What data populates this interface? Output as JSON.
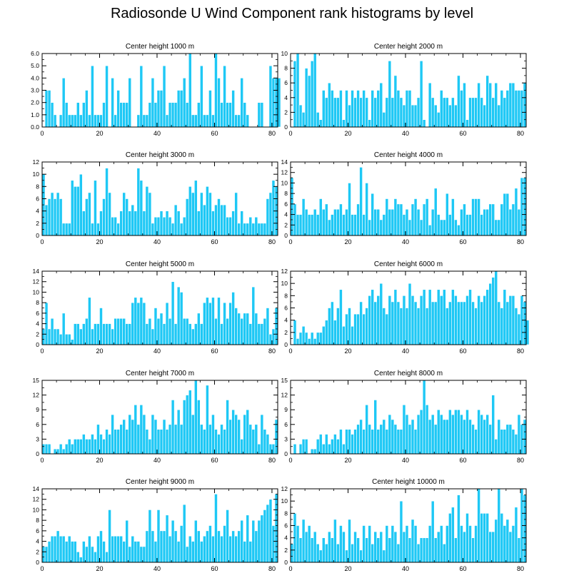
{
  "figure": {
    "title": "Radiosonde U Wind Component rank histograms by level",
    "bar_color": "#1ec8f5",
    "bar_edge_color": "#ffffff"
  },
  "chart_data": [
    {
      "type": "bar",
      "title": "Center height 1000 m",
      "xlim": [
        0,
        82
      ],
      "ylim": [
        0,
        6
      ],
      "xticks": [
        0,
        20,
        40,
        60,
        80
      ],
      "xtick_labels": [
        "0",
        "20",
        "40",
        "60",
        "80"
      ],
      "yticks": [
        0,
        1,
        2,
        3,
        4,
        5,
        6
      ],
      "ytick_labels": [
        "0.0",
        "1.0",
        "2.0",
        "3.0",
        "4.0",
        "5.0",
        "6.0"
      ],
      "values": [
        0,
        3,
        3,
        2,
        1,
        0,
        1,
        4,
        2,
        1,
        1,
        1,
        2,
        1,
        2,
        3,
        1,
        5,
        1,
        1,
        1,
        2,
        5,
        0,
        4,
        1,
        3,
        2,
        2,
        2,
        4,
        0,
        0,
        1,
        5,
        1,
        1,
        2,
        4,
        2,
        3,
        3,
        5,
        1,
        2,
        2,
        2,
        3,
        3,
        4,
        2,
        6,
        1,
        1,
        2,
        5,
        1,
        1,
        3,
        1,
        6,
        4,
        2,
        5,
        2,
        2,
        3,
        1,
        1,
        4,
        2,
        1,
        0,
        0,
        0,
        2,
        2,
        0,
        0,
        5,
        4,
        4,
        4
      ]
    },
    {
      "type": "bar",
      "title": "Center height 2000 m",
      "xlim": [
        0,
        82
      ],
      "ylim": [
        0,
        10
      ],
      "xticks": [
        0,
        20,
        40,
        60,
        80
      ],
      "xtick_labels": [
        "0",
        "20",
        "40",
        "60",
        "80"
      ],
      "yticks": [
        0,
        2,
        4,
        6,
        8,
        10
      ],
      "ytick_labels": [
        "0",
        "2",
        "4",
        "6",
        "8",
        "10"
      ],
      "values": [
        0,
        9,
        10,
        3,
        2,
        8,
        7,
        9,
        10,
        2,
        1,
        5,
        4,
        6,
        5,
        4,
        4,
        5,
        1,
        5,
        3,
        5,
        4,
        5,
        4,
        5,
        4,
        1,
        5,
        4,
        5,
        6,
        2,
        4,
        9,
        4,
        7,
        5,
        4,
        3,
        5,
        5,
        3,
        3,
        4,
        9,
        1,
        0,
        6,
        4,
        3,
        2,
        5,
        4,
        4,
        3,
        4,
        3,
        7,
        5,
        6,
        1,
        4,
        4,
        4,
        6,
        4,
        3,
        7,
        6,
        4,
        6,
        3,
        5,
        4,
        5,
        6,
        6,
        5,
        5,
        5,
        6
      ]
    },
    {
      "type": "bar",
      "title": "Center height 3000 m",
      "xlim": [
        0,
        82
      ],
      "ylim": [
        0,
        12
      ],
      "xticks": [
        0,
        20,
        40,
        60,
        80
      ],
      "xtick_labels": [
        "0",
        "20",
        "40",
        "60",
        "80"
      ],
      "yticks": [
        0,
        2,
        4,
        6,
        8,
        10,
        12
      ],
      "ytick_labels": [
        "0",
        "2",
        "4",
        "6",
        "8",
        "10",
        "12"
      ],
      "values": [
        10,
        5,
        6,
        7,
        6,
        7,
        6,
        2,
        2,
        2,
        9,
        8,
        8,
        10,
        4,
        6,
        7,
        2,
        9,
        2,
        4,
        6,
        11,
        7,
        3,
        3,
        2,
        4,
        7,
        6,
        4,
        5,
        4,
        11,
        9,
        4,
        8,
        7,
        2,
        3,
        3,
        4,
        3,
        4,
        3,
        2,
        5,
        4,
        2,
        3,
        6,
        8,
        7,
        9,
        4,
        7,
        5,
        8,
        7,
        4,
        5,
        6,
        5,
        5,
        3,
        3,
        4,
        7,
        2,
        4,
        2,
        2,
        3,
        2,
        3,
        2,
        2,
        2,
        6,
        7,
        9,
        8
      ]
    },
    {
      "type": "bar",
      "title": "Center height 4000 m",
      "xlim": [
        0,
        82
      ],
      "ylim": [
        0,
        14
      ],
      "xticks": [
        0,
        20,
        40,
        60,
        80
      ],
      "xtick_labels": [
        "0",
        "20",
        "40",
        "60",
        "80"
      ],
      "yticks": [
        0,
        2,
        4,
        6,
        8,
        10,
        12,
        14
      ],
      "ytick_labels": [
        "0",
        "2",
        "4",
        "6",
        "8",
        "10",
        "12",
        "14"
      ],
      "values": [
        11,
        6,
        4,
        4,
        7,
        5,
        4,
        4,
        5,
        4,
        7,
        5,
        6,
        3,
        4,
        5,
        5,
        6,
        4,
        5,
        10,
        4,
        4,
        6,
        13,
        4,
        10,
        3,
        8,
        5,
        5,
        3,
        4,
        7,
        5,
        5,
        7,
        6,
        6,
        4,
        5,
        3,
        6,
        7,
        5,
        3,
        6,
        7,
        2,
        5,
        9,
        4,
        3,
        3,
        8,
        4,
        7,
        3,
        2,
        5,
        6,
        4,
        4,
        7,
        7,
        7,
        4,
        5,
        5,
        6,
        6,
        3,
        3,
        6,
        8,
        8,
        5,
        6,
        9,
        5,
        11,
        11
      ]
    },
    {
      "type": "bar",
      "title": "Center height 5000 m",
      "xlim": [
        0,
        82
      ],
      "ylim": [
        0,
        14
      ],
      "xticks": [
        0,
        20,
        40,
        60,
        80
      ],
      "xtick_labels": [
        "0",
        "20",
        "40",
        "60",
        "80"
      ],
      "yticks": [
        0,
        2,
        4,
        6,
        8,
        10,
        12,
        14
      ],
      "ytick_labels": [
        "0",
        "2",
        "4",
        "6",
        "8",
        "10",
        "12",
        "14"
      ],
      "values": [
        3,
        8,
        3,
        5,
        3,
        3,
        2,
        6,
        2,
        2,
        1,
        4,
        4,
        3,
        4,
        5,
        9,
        3,
        4,
        4,
        7,
        4,
        4,
        4,
        3,
        5,
        5,
        5,
        5,
        4,
        4,
        8,
        9,
        8,
        9,
        8,
        4,
        5,
        3,
        7,
        5,
        6,
        4,
        8,
        5,
        12,
        4,
        11,
        10,
        5,
        5,
        4,
        3,
        4,
        6,
        4,
        8,
        9,
        8,
        9,
        5,
        9,
        4,
        8,
        5,
        8,
        10,
        7,
        6,
        5,
        6,
        6,
        4,
        11,
        6,
        4,
        4,
        5,
        7,
        2,
        3,
        7
      ]
    },
    {
      "type": "bar",
      "title": "Center height 6000 m",
      "xlim": [
        0,
        82
      ],
      "ylim": [
        0,
        12
      ],
      "xticks": [
        0,
        20,
        40,
        60,
        80
      ],
      "xtick_labels": [
        "0",
        "20",
        "40",
        "60",
        "80"
      ],
      "yticks": [
        0,
        2,
        4,
        6,
        8,
        10,
        12
      ],
      "ytick_labels": [
        "0",
        "2",
        "4",
        "6",
        "8",
        "10",
        "12"
      ],
      "values": [
        0,
        4,
        1,
        2,
        3,
        2,
        1,
        2,
        1,
        2,
        2,
        3,
        4,
        6,
        7,
        4,
        6,
        9,
        3,
        5,
        6,
        3,
        5,
        5,
        7,
        5,
        6,
        8,
        9,
        7,
        8,
        10,
        6,
        5,
        8,
        7,
        9,
        7,
        6,
        8,
        6,
        10,
        8,
        7,
        6,
        8,
        9,
        6,
        9,
        7,
        7,
        9,
        8,
        9,
        6,
        7,
        9,
        8,
        7,
        7,
        7,
        8,
        9,
        7,
        6,
        8,
        7,
        8,
        9,
        10,
        11,
        12,
        7,
        6,
        9,
        7,
        8,
        8,
        6,
        5,
        8,
        7,
        4
      ]
    },
    {
      "type": "bar",
      "title": "Center height 7000 m",
      "xlim": [
        0,
        82
      ],
      "ylim": [
        0,
        15
      ],
      "xticks": [
        0,
        20,
        40,
        60,
        80
      ],
      "xtick_labels": [
        "0",
        "20",
        "40",
        "60",
        "80"
      ],
      "yticks": [
        0,
        3,
        6,
        9,
        12,
        15
      ],
      "ytick_labels": [
        "0",
        "3",
        "6",
        "9",
        "12",
        "15"
      ],
      "values": [
        2,
        2,
        2,
        0,
        1,
        1,
        2,
        1,
        2,
        3,
        2,
        3,
        3,
        3,
        4,
        3,
        3,
        4,
        3,
        6,
        4,
        3,
        5,
        4,
        8,
        5,
        5,
        6,
        7,
        5,
        8,
        7,
        10,
        6,
        10,
        8,
        5,
        3,
        8,
        7,
        5,
        5,
        7,
        5,
        6,
        11,
        6,
        9,
        6,
        11,
        12,
        13,
        8,
        15,
        11,
        6,
        5,
        14,
        6,
        8,
        5,
        4,
        6,
        5,
        11,
        7,
        9,
        8,
        7,
        3,
        8,
        9,
        6,
        5,
        6,
        2,
        8,
        5,
        4,
        2,
        2,
        7
      ]
    },
    {
      "type": "bar",
      "title": "Center height 8000 m",
      "xlim": [
        0,
        82
      ],
      "ylim": [
        0,
        15
      ],
      "xticks": [
        0,
        20,
        40,
        60,
        80
      ],
      "xtick_labels": [
        "0",
        "20",
        "40",
        "60",
        "80"
      ],
      "yticks": [
        0,
        3,
        6,
        9,
        12,
        15
      ],
      "ytick_labels": [
        "0",
        "3",
        "6",
        "9",
        "12",
        "15"
      ],
      "values": [
        0,
        2,
        0,
        2,
        3,
        3,
        0,
        1,
        1,
        3,
        4,
        2,
        4,
        2,
        3,
        4,
        3,
        5,
        2,
        5,
        5,
        4,
        5,
        6,
        7,
        5,
        10,
        6,
        5,
        11,
        5,
        6,
        7,
        5,
        8,
        7,
        6,
        5,
        5,
        10,
        8,
        6,
        7,
        5,
        8,
        9,
        15,
        10,
        7,
        8,
        6,
        9,
        8,
        7,
        7,
        9,
        8,
        9,
        9,
        8,
        7,
        9,
        7,
        6,
        5,
        9,
        8,
        7,
        8,
        6,
        12,
        3,
        7,
        5,
        5,
        6,
        6,
        5,
        4,
        8,
        6,
        7
      ]
    },
    {
      "type": "bar",
      "title": "Center height 9000 m",
      "xlim": [
        0,
        82
      ],
      "ylim": [
        0,
        14
      ],
      "xticks": [
        0,
        20,
        40,
        60,
        80
      ],
      "xtick_labels": [
        "0",
        "20",
        "40",
        "60",
        "80"
      ],
      "yticks": [
        0,
        2,
        4,
        6,
        8,
        10,
        12,
        14
      ],
      "ytick_labels": [
        "0",
        "2",
        "4",
        "6",
        "8",
        "10",
        "12",
        "14"
      ],
      "values": [
        3,
        3,
        4,
        5,
        5,
        6,
        5,
        5,
        4,
        5,
        4,
        4,
        2,
        1,
        4,
        3,
        5,
        3,
        2,
        5,
        6,
        4,
        2,
        10,
        5,
        5,
        5,
        5,
        4,
        8,
        3,
        5,
        4,
        4,
        3,
        3,
        6,
        10,
        6,
        4,
        10,
        6,
        6,
        9,
        5,
        8,
        6,
        4,
        7,
        11,
        3,
        5,
        4,
        8,
        6,
        4,
        5,
        6,
        7,
        5,
        13,
        6,
        5,
        7,
        10,
        5,
        6,
        5,
        6,
        8,
        4,
        9,
        4,
        8,
        6,
        8,
        9,
        10,
        11,
        12,
        7,
        13
      ]
    },
    {
      "type": "bar",
      "title": "Center height 10000 m",
      "xlim": [
        0,
        82
      ],
      "ylim": [
        0,
        12
      ],
      "xticks": [
        0,
        20,
        40,
        60,
        80
      ],
      "xtick_labels": [
        "0",
        "20",
        "40",
        "60",
        "80"
      ],
      "yticks": [
        0,
        2,
        4,
        6,
        8,
        10,
        12
      ],
      "ytick_labels": [
        "0",
        "2",
        "4",
        "6",
        "8",
        "10",
        "12"
      ],
      "values": [
        3,
        8,
        6,
        4,
        7,
        5,
        6,
        4,
        5,
        3,
        2,
        4,
        3,
        5,
        4,
        7,
        3,
        6,
        5,
        2,
        7,
        3,
        5,
        4,
        2,
        6,
        4,
        6,
        3,
        5,
        4,
        5,
        2,
        6,
        4,
        6,
        5,
        3,
        10,
        5,
        6,
        4,
        7,
        6,
        3,
        4,
        4,
        4,
        6,
        10,
        4,
        5,
        6,
        3,
        6,
        8,
        9,
        4,
        11,
        6,
        5,
        8,
        6,
        4,
        6,
        12,
        8,
        8,
        8,
        5,
        5,
        7,
        12,
        8,
        6,
        7,
        5,
        6,
        9,
        4,
        12,
        11
      ]
    }
  ]
}
